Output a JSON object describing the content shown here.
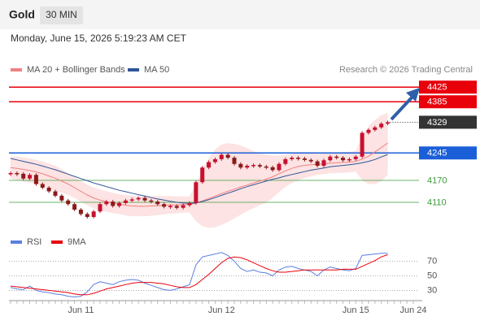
{
  "header": {
    "title": "Gold",
    "interval": "30 MIN",
    "timestamp": "Monday, June 15, 2026 5:19:23 AM CET",
    "credit": "Research © 2026 Trading Central"
  },
  "chart_data": [
    {
      "type": "candlestick",
      "up_color": "#c8102e",
      "down_color": "#8b1a1a",
      "ylim": [
        4030,
        4450
      ],
      "values": [
        4190,
        4188,
        4175,
        4185,
        4160,
        4150,
        4140,
        4128,
        4115,
        4105,
        4090,
        4078,
        4070,
        4085,
        4105,
        4112,
        4100,
        4108,
        4115,
        4118,
        4122,
        4115,
        4112,
        4105,
        4098,
        4100,
        4095,
        4102,
        4108,
        4165,
        4205,
        4220,
        4228,
        4240,
        4232,
        4215,
        4205,
        4210,
        4212,
        4208,
        4206,
        4198,
        4215,
        4228,
        4232,
        4230,
        4226,
        4222,
        4210,
        4225,
        4235,
        4232,
        4225,
        4228,
        4235,
        4300,
        4308,
        4315,
        4325,
        4329,
        null,
        null,
        null,
        null
      ],
      "series": [
        {
          "name": "MA 20 + Bollinger Bands",
          "color": "#f08080",
          "band_color": "#fde3e3",
          "values": [
            4205,
            4203,
            4200,
            4197,
            4193,
            4188,
            4182,
            4176,
            4168,
            4160,
            4150,
            4140,
            4130,
            4122,
            4116,
            4112,
            4108,
            4105,
            4102,
            4100,
            4099,
            4099,
            4100,
            4101,
            4102,
            4103,
            4103,
            4104,
            4104,
            4108,
            4114,
            4120,
            4127,
            4134,
            4140,
            4146,
            4152,
            4157,
            4163,
            4168,
            4173,
            4180,
            4188,
            4196,
            4203,
            4208,
            4211,
            4213,
            4214,
            4215,
            4217,
            4218,
            4219,
            4220,
            4222,
            4228,
            4236,
            4248,
            4260,
            4272,
            null,
            null,
            null,
            null
          ],
          "upper": [
            4235,
            4235,
            4233,
            4230,
            4226,
            4222,
            4216,
            4210,
            4200,
            4190,
            4178,
            4168,
            4158,
            4150,
            4145,
            4140,
            4136,
            4132,
            4130,
            4128,
            4126,
            4126,
            4127,
            4127,
            4127,
            4127,
            4126,
            4126,
            4126,
            4160,
            4200,
            4232,
            4255,
            4268,
            4272,
            4270,
            4265,
            4258,
            4250,
            4244,
            4240,
            4238,
            4238,
            4240,
            4243,
            4246,
            4246,
            4245,
            4243,
            4243,
            4245,
            4246,
            4247,
            4248,
            4250,
            4290,
            4318,
            4335,
            4348,
            4355,
            null,
            null,
            null,
            null
          ],
          "lower": [
            4175,
            4171,
            4167,
            4164,
            4160,
            4154,
            4148,
            4142,
            4136,
            4130,
            4122,
            4112,
            4102,
            4094,
            4087,
            4084,
            4080,
            4078,
            4074,
            4072,
            4072,
            4072,
            4073,
            4075,
            4077,
            4079,
            4080,
            4082,
            4082,
            4058,
            4045,
            4040,
            4042,
            4048,
            4056,
            4066,
            4076,
            4086,
            4094,
            4102,
            4110,
            4122,
            4138,
            4152,
            4163,
            4170,
            4176,
            4181,
            4185,
            4187,
            4189,
            4190,
            4191,
            4192,
            4194,
            4170,
            4160,
            4160,
            4168,
            4185,
            null,
            null,
            null,
            null
          ]
        },
        {
          "name": "MA 50",
          "color": "#2f5597",
          "values": [
            4230,
            4226,
            4222,
            4218,
            4214,
            4209,
            4204,
            4199,
            4193,
            4187,
            4181,
            4175,
            4169,
            4163,
            4158,
            4153,
            4148,
            4143,
            4139,
            4135,
            4131,
            4127,
            4123,
            4119,
            4116,
            4113,
            4110,
            4108,
            4107,
            4108,
            4112,
            4117,
            4123,
            4129,
            4135,
            4141,
            4147,
            4153,
            4158,
            4163,
            4168,
            4173,
            4177,
            4182,
            4186,
            4190,
            4194,
            4198,
            4201,
            4204,
            4207,
            4209,
            4211,
            4213,
            4215,
            4218,
            4222,
            4227,
            4234,
            4241,
            null,
            null,
            null,
            null
          ]
        }
      ],
      "levels": [
        {
          "value": 4425,
          "color": "#e8000b",
          "label_style": "box",
          "line": "solid"
        },
        {
          "value": 4385,
          "color": "#e8000b",
          "label_style": "box",
          "line": "solid"
        },
        {
          "value": 4329,
          "color": "#333333",
          "label_style": "box",
          "line": "dotted"
        },
        {
          "value": 4245,
          "color": "#1a5fd8",
          "label_style": "box",
          "line": "solid"
        },
        {
          "value": 4170,
          "color": "#3c9a3c",
          "label_style": "text",
          "line": "solid"
        },
        {
          "value": 4110,
          "color": "#3c9a3c",
          "label_style": "text",
          "line": "solid"
        }
      ]
    },
    {
      "type": "line",
      "ylim": [
        16,
        84
      ],
      "yticks": [
        30,
        50,
        70
      ],
      "grid": true,
      "categories": [
        null,
        null,
        null,
        null,
        null,
        null,
        null,
        null,
        null,
        null,
        null,
        "Jun 11",
        null,
        null,
        null,
        null,
        null,
        null,
        null,
        null,
        null,
        null,
        null,
        null,
        null,
        null,
        null,
        null,
        null,
        null,
        null,
        null,
        null,
        "Jun 12",
        null,
        null,
        null,
        null,
        null,
        null,
        null,
        null,
        null,
        null,
        null,
        null,
        null,
        null,
        null,
        null,
        null,
        null,
        null,
        null,
        "Jun 15",
        null,
        null,
        null,
        null,
        null,
        null,
        null,
        null,
        "Jun 24"
      ],
      "series": [
        {
          "name": "RSI",
          "color": "#5b7fde",
          "values": [
            34,
            32,
            31,
            36,
            30,
            28,
            27,
            25,
            24,
            22,
            21,
            22,
            28,
            38,
            42,
            40,
            38,
            42,
            44,
            45,
            44,
            40,
            37,
            34,
            31,
            30,
            32,
            35,
            38,
            65,
            76,
            78,
            80,
            82,
            78,
            70,
            60,
            56,
            58,
            55,
            54,
            50,
            58,
            62,
            63,
            60,
            58,
            56,
            50,
            58,
            62,
            60,
            58,
            57,
            60,
            78,
            79,
            80,
            81,
            81,
            null,
            null,
            null,
            null
          ]
        },
        {
          "name": "9MA",
          "color": "#e8000b",
          "values": [
            36,
            35,
            34,
            33,
            32,
            31,
            30,
            29,
            28,
            27,
            25,
            24,
            24,
            26,
            29,
            32,
            34,
            36,
            38,
            40,
            41,
            41,
            41,
            40,
            39,
            37,
            35,
            34,
            34,
            38,
            45,
            52,
            60,
            68,
            74,
            76,
            75,
            72,
            68,
            64,
            60,
            57,
            55,
            55,
            56,
            57,
            58,
            58,
            58,
            58,
            58,
            58,
            59,
            59,
            59,
            63,
            67,
            71,
            76,
            79,
            null,
            null,
            null,
            null
          ]
        }
      ]
    }
  ]
}
